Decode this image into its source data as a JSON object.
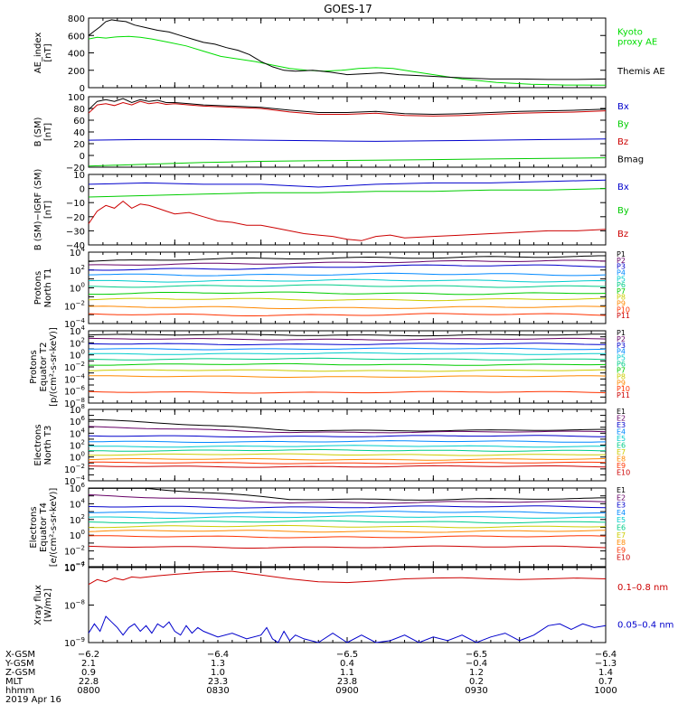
{
  "title": "GOES-17",
  "chart_data": [
    {
      "type": "line",
      "ylabel": "AE_index\n[nT]",
      "ylim": [
        0,
        800
      ],
      "yticks": [
        "0",
        "200",
        "400",
        "600",
        "800"
      ],
      "series": [
        {
          "name": "Kyoto\nproxy AE",
          "color": "#00dd00",
          "x": [
            0,
            3,
            6,
            10,
            14,
            18,
            22,
            28,
            34,
            40,
            46,
            52,
            58,
            64,
            70,
            76,
            82,
            88,
            94,
            100,
            106,
            112,
            118,
            124,
            130,
            136,
            142,
            148,
            154,
            160,
            166,
            172,
            180
          ],
          "y": [
            560,
            580,
            570,
            585,
            590,
            580,
            560,
            520,
            480,
            420,
            360,
            330,
            300,
            260,
            220,
            200,
            190,
            200,
            220,
            230,
            220,
            190,
            160,
            130,
            100,
            80,
            60,
            50,
            40,
            35,
            30,
            30,
            28
          ]
        },
        {
          "name": "Themis AE",
          "color": "#000000",
          "x": [
            0,
            2,
            4,
            6,
            8,
            10,
            13,
            16,
            20,
            24,
            28,
            32,
            36,
            40,
            44,
            48,
            52,
            56,
            60,
            64,
            68,
            72,
            78,
            84,
            90,
            96,
            102,
            108,
            114,
            120,
            126,
            132,
            140,
            150,
            160,
            170,
            180
          ],
          "y": [
            600,
            650,
            700,
            760,
            780,
            770,
            760,
            720,
            690,
            660,
            640,
            600,
            560,
            520,
            500,
            460,
            430,
            380,
            300,
            240,
            200,
            190,
            200,
            180,
            150,
            160,
            170,
            150,
            140,
            130,
            120,
            110,
            100,
            100,
            95,
            95,
            100
          ]
        }
      ],
      "legend": "right"
    },
    {
      "type": "line",
      "ylabel": "B (SM)\n[nT]",
      "ylim": [
        -20,
        100
      ],
      "yticks": [
        "−20",
        "0",
        "20",
        "40",
        "60",
        "80",
        "100"
      ],
      "series": [
        {
          "name": "Bx",
          "color": "#0000cc",
          "x": [
            0,
            20,
            40,
            60,
            80,
            100,
            120,
            140,
            160,
            180
          ],
          "y": [
            26,
            27,
            27,
            26,
            25,
            24,
            25,
            26,
            27,
            28
          ]
        },
        {
          "name": "By",
          "color": "#00cc00",
          "x": [
            0,
            20,
            40,
            60,
            80,
            100,
            120,
            140,
            160,
            180
          ],
          "y": [
            -18,
            -15,
            -12,
            -10,
            -9,
            -8,
            -7,
            -6,
            -5,
            -4
          ]
        },
        {
          "name": "Bz",
          "color": "#cc0000",
          "x": [
            0,
            3,
            6,
            9,
            12,
            15,
            18,
            21,
            24,
            27,
            30,
            35,
            40,
            50,
            60,
            70,
            80,
            90,
            100,
            110,
            120,
            130,
            140,
            150,
            160,
            170,
            180
          ],
          "y": [
            72,
            86,
            88,
            85,
            90,
            86,
            92,
            88,
            90,
            87,
            88,
            86,
            84,
            82,
            80,
            74,
            70,
            70,
            72,
            68,
            67,
            68,
            70,
            72,
            73,
            74,
            76
          ]
        },
        {
          "name": "Bmag",
          "color": "#000000",
          "x": [
            0,
            3,
            6,
            9,
            12,
            15,
            18,
            21,
            24,
            27,
            30,
            35,
            40,
            50,
            60,
            70,
            80,
            90,
            100,
            110,
            120,
            130,
            140,
            150,
            160,
            170,
            180
          ],
          "y": [
            78,
            92,
            95,
            92,
            97,
            90,
            95,
            92,
            94,
            90,
            90,
            88,
            86,
            84,
            82,
            77,
            73,
            73,
            75,
            71,
            70,
            71,
            73,
            75,
            76,
            77,
            79
          ]
        }
      ],
      "legend": "right"
    },
    {
      "type": "line",
      "ylabel": "B (SM)−IGRF (SM)\n[nT]",
      "ylim": [
        -40,
        10
      ],
      "yticks": [
        "−40",
        "−30",
        "−20",
        "−10",
        "0",
        "10"
      ],
      "series": [
        {
          "name": "Bx",
          "color": "#0000cc",
          "x": [
            0,
            20,
            40,
            60,
            70,
            80,
            90,
            100,
            120,
            140,
            160,
            180
          ],
          "y": [
            3,
            4,
            3,
            3,
            2,
            1,
            2,
            3,
            4,
            4,
            5,
            6
          ]
        },
        {
          "name": "By",
          "color": "#00cc00",
          "x": [
            0,
            20,
            40,
            60,
            80,
            100,
            120,
            140,
            160,
            180
          ],
          "y": [
            -6,
            -5,
            -4,
            -3,
            -3,
            -2,
            -2,
            -1,
            -1,
            0
          ]
        },
        {
          "name": "Bz",
          "color": "#cc0000",
          "x": [
            0,
            3,
            6,
            9,
            12,
            15,
            18,
            21,
            24,
            27,
            30,
            35,
            40,
            45,
            50,
            55,
            60,
            65,
            70,
            75,
            80,
            85,
            90,
            95,
            100,
            105,
            110,
            120,
            130,
            140,
            150,
            160,
            170,
            180
          ],
          "y": [
            -25,
            -16,
            -12,
            -14,
            -9,
            -14,
            -11,
            -12,
            -14,
            -16,
            -18,
            -17,
            -20,
            -23,
            -24,
            -26,
            -26,
            -28,
            -30,
            -32,
            -33,
            -34,
            -36,
            -37,
            -34,
            -33,
            -35,
            -34,
            -33,
            -32,
            -31,
            -30,
            -30,
            -29
          ]
        }
      ],
      "legend": "right"
    },
    {
      "type": "line",
      "ylabel": "Protons\nNorth T1",
      "ylim": [
        -4,
        4
      ],
      "log": true,
      "series_names": [
        "P1",
        "P2",
        "P3",
        "P4",
        "P5",
        "P6",
        "P7",
        "P8",
        "P9",
        "P10",
        "P11"
      ],
      "series_colors": [
        "#000000",
        "#660066",
        "#0000cc",
        "#0088ff",
        "#00cccc",
        "#00cc88",
        "#00cc00",
        "#cccc00",
        "#ff8800",
        "#ff3300",
        "#cc0000"
      ],
      "series_levels": [
        3.2,
        2.7,
        2.2,
        1.5,
        0.8,
        0.2,
        -0.6,
        -1.3,
        -2.2,
        -3.0,
        null
      ],
      "legend": "right"
    },
    {
      "type": "line",
      "ylabel": "Protons\nEquator T2\n[p/(cm²-s-sr-keV)]",
      "ylim": [
        -8,
        4
      ],
      "log": true,
      "series_names": [
        "P1",
        "P2",
        "P3",
        "P4",
        "P5",
        "P6",
        "P7",
        "P8",
        "P9",
        "P10",
        "P11"
      ],
      "series_colors": [
        "#000000",
        "#660066",
        "#0000cc",
        "#0088ff",
        "#00cccc",
        "#00cc88",
        "#00cc00",
        "#cccc00",
        "#ff8800",
        "#ff3300",
        "#cc0000"
      ],
      "series_levels": [
        3.3,
        2.6,
        1.8,
        1.0,
        0.2,
        -0.7,
        -1.6,
        -2.6,
        -3.6,
        -6.2,
        null
      ],
      "legend": "right"
    },
    {
      "type": "line",
      "ylabel": "Electrons\nNorth T3",
      "ylim": [
        -4,
        8
      ],
      "log": true,
      "series_names": [
        "E1",
        "E2",
        "E3",
        "E4",
        "E5",
        "E6",
        "E7",
        "E8",
        "E9",
        "E10"
      ],
      "series_colors": [
        "#000000",
        "#660066",
        "#0000cc",
        "#0088ff",
        "#00cccc",
        "#00cc88",
        "#cccc00",
        "#ff8800",
        "#ff3300",
        "#cc0000"
      ],
      "series_levels": [
        4.5,
        4.2,
        3.5,
        2.6,
        1.8,
        1.1,
        0.4,
        -0.4,
        -1.0,
        -1.6
      ],
      "legend": "right"
    },
    {
      "type": "line",
      "ylabel": "Electrons\nEquator T4\n[e/(cm²-s-sr-keV)]",
      "ylim": [
        -4,
        6
      ],
      "log": true,
      "series_names": [
        "E1",
        "E2",
        "E3",
        "E4",
        "E5",
        "E6",
        "E7",
        "E8",
        "E9",
        "E10"
      ],
      "series_colors": [
        "#000000",
        "#660066",
        "#0000cc",
        "#0088ff",
        "#00cccc",
        "#00cc88",
        "#cccc00",
        "#ff8800",
        "#ff3300",
        "#cc0000"
      ],
      "series_levels": [
        4.6,
        4.2,
        3.6,
        2.9,
        2.3,
        1.7,
        1.1,
        0.5,
        -0.2,
        -1.5
      ],
      "legend": "right"
    },
    {
      "type": "line",
      "ylabel": "Xray flux\n[W/m2]",
      "ylim": [
        -9,
        -7
      ],
      "log": true,
      "series": [
        {
          "name": "0.1–0.8 nm",
          "color": "#cc0000",
          "x": [
            0,
            3,
            6,
            9,
            12,
            15,
            18,
            24,
            30,
            40,
            50,
            60,
            70,
            80,
            90,
            100,
            110,
            120,
            130,
            140,
            150,
            160,
            170,
            180
          ],
          "y": [
            -7.45,
            -7.32,
            -7.38,
            -7.28,
            -7.33,
            -7.25,
            -7.27,
            -7.22,
            -7.18,
            -7.12,
            -7.1,
            -7.2,
            -7.3,
            -7.38,
            -7.4,
            -7.36,
            -7.3,
            -7.28,
            -7.27,
            -7.3,
            -7.32,
            -7.3,
            -7.28,
            -7.3
          ]
        },
        {
          "name": "0.05–0.4 nm",
          "color": "#0000cc",
          "x": [
            0,
            2,
            4,
            6,
            8,
            10,
            12,
            14,
            16,
            18,
            20,
            22,
            24,
            26,
            28,
            30,
            32,
            34,
            36,
            38,
            40,
            45,
            50,
            55,
            60,
            62,
            64,
            66,
            68,
            70,
            72,
            75,
            80,
            85,
            90,
            95,
            100,
            105,
            110,
            115,
            120,
            125,
            130,
            135,
            140,
            145,
            150,
            155,
            160,
            164,
            168,
            172,
            176,
            180
          ],
          "y": [
            -8.75,
            -8.5,
            -8.7,
            -8.3,
            -8.45,
            -8.6,
            -8.8,
            -8.6,
            -8.5,
            -8.7,
            -8.55,
            -8.75,
            -8.5,
            -8.6,
            -8.45,
            -8.7,
            -8.8,
            -8.55,
            -8.75,
            -8.6,
            -8.7,
            -8.85,
            -8.75,
            -8.9,
            -8.8,
            -8.6,
            -8.9,
            -9,
            -8.7,
            -8.95,
            -8.8,
            -8.9,
            -9,
            -8.75,
            -9,
            -8.8,
            -9,
            -8.95,
            -8.8,
            -9,
            -8.85,
            -8.95,
            -8.8,
            -9,
            -8.85,
            -8.75,
            -8.95,
            -8.8,
            -8.55,
            -8.5,
            -8.65,
            -8.5,
            -8.6,
            -8.55
          ]
        }
      ],
      "legend": "right"
    }
  ],
  "time_axis": {
    "xlim": [
      0,
      180
    ],
    "labels": [
      "X-GSM",
      "Y-GSM",
      "Z-GSM",
      "MLT",
      "hhmm"
    ],
    "columns": [
      [
        "−6.2",
        "2.1",
        "0.9",
        "22.8",
        "0800"
      ],
      [
        "−6.4",
        "1.3",
        "1.0",
        "23.3",
        "0830"
      ],
      [
        "−6.5",
        "0.4",
        "1.1",
        "23.8",
        "0900"
      ],
      [
        "−6.5",
        "−0.4",
        "1.2",
        "0.2",
        "0930"
      ],
      [
        "−6.4",
        "−1.3",
        "1.4",
        "0.7",
        "1000"
      ]
    ],
    "date": "2019 Apr 16"
  }
}
